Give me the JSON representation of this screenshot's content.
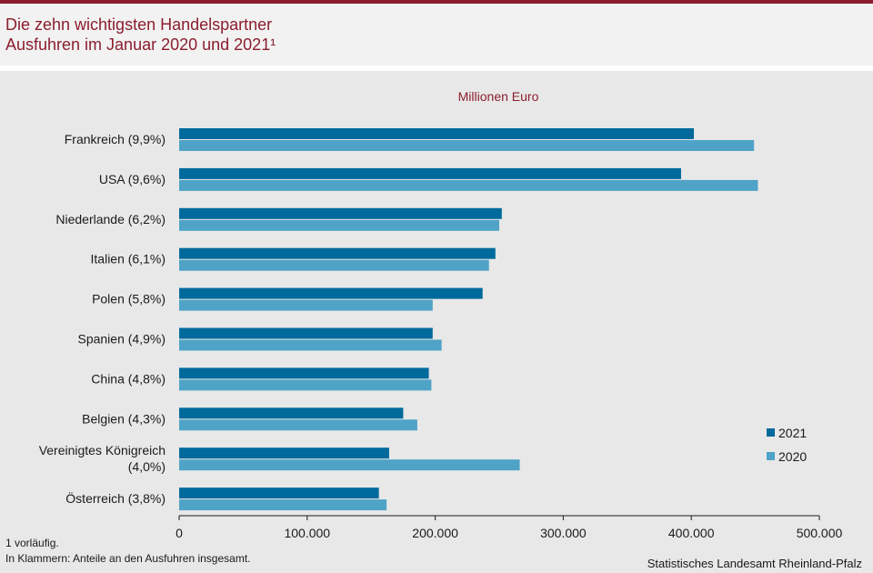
{
  "header": {
    "title_line1": "Die zehn wichtigsten Handelspartner",
    "title_line2": "Ausfuhren im Januar 2020 und 2021¹"
  },
  "chart_data": {
    "type": "bar",
    "orientation": "horizontal",
    "unit_label": "Millionen  Euro",
    "categories": [
      [
        "Frankreich (9,9%)"
      ],
      [
        "USA (9,6%)"
      ],
      [
        "Niederlande (6,2%)"
      ],
      [
        "Italien (6,1%)"
      ],
      [
        "Polen (5,8%)"
      ],
      [
        "Spanien (4,9%)"
      ],
      [
        "China (4,8%)"
      ],
      [
        "Belgien (4,3%)"
      ],
      [
        "Vereinigtes Königreich",
        "(4,0%)"
      ],
      [
        "Österreich (3,8%)"
      ]
    ],
    "series": [
      {
        "name": "2021",
        "color": "#006a9c",
        "values": [
          402,
          392,
          252,
          247,
          237,
          198,
          195,
          175,
          164,
          156
        ]
      },
      {
        "name": "2020",
        "color": "#4fa3c7",
        "values": [
          449,
          452,
          250,
          242,
          198,
          205,
          197,
          186,
          266,
          162
        ]
      }
    ],
    "xlim": [
      0,
      500
    ],
    "xticks": [
      0,
      100,
      200,
      300,
      400,
      500
    ],
    "xtick_labels": [
      "0",
      "100.000",
      "200.000",
      "300.000",
      "400.000",
      "500.000"
    ],
    "legend_position": "right",
    "grid": false
  },
  "footer": {
    "note1": "1 vorläufig.",
    "note2": "In Klammern: Anteile an den Ausfuhren insgesamt.",
    "source": "Statistisches Landesamt Rheinland-Pfalz"
  }
}
